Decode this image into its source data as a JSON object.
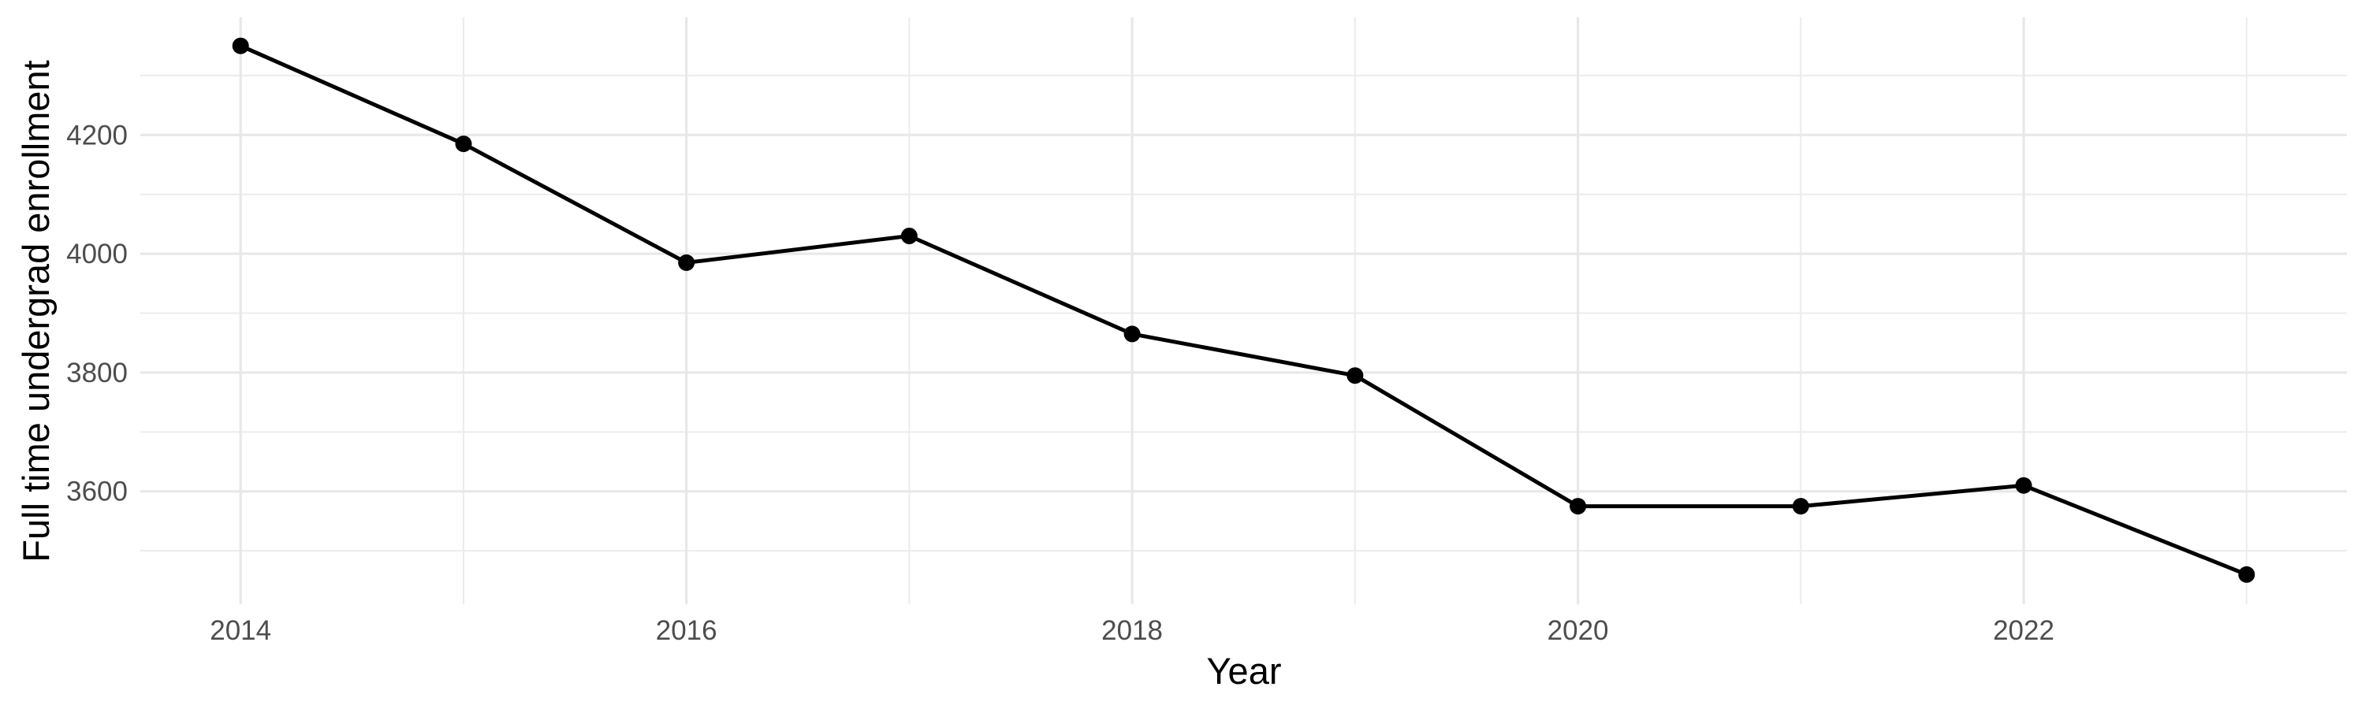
{
  "figure": {
    "background": "#FFFFFF"
  },
  "chart_data": {
    "type": "line",
    "title": "",
    "xlabel": "Year",
    "ylabel": "Full time undergrad enrollment",
    "x": [
      2014,
      2015,
      2016,
      2017,
      2018,
      2019,
      2020,
      2021,
      2022,
      2023
    ],
    "series": [
      {
        "name": "Full time undergrad enrollment",
        "values": [
          4350,
          4185,
          3985,
          4030,
          3865,
          3795,
          3575,
          3575,
          3610,
          3460
        ]
      }
    ],
    "x_tick_labels": [
      "2014",
      "2016",
      "2018",
      "2020",
      "2022"
    ],
    "x_tick_positions": [
      2014,
      2016,
      2018,
      2020,
      2022
    ],
    "y_tick_labels": [
      "3600",
      "3800",
      "4000",
      "4200"
    ],
    "y_tick_positions": [
      3600,
      3800,
      4000,
      4200
    ],
    "x_gridlines_major": [
      2014,
      2016,
      2018,
      2020,
      2022
    ],
    "x_gridlines_minor": [
      2015,
      2017,
      2019,
      2021,
      2023
    ],
    "y_gridlines_major": [
      3600,
      3800,
      4000,
      4200
    ],
    "y_gridlines_minor": [
      3500,
      3700,
      3900,
      4100,
      4300
    ],
    "xlim": [
      2013.55,
      2023.45
    ],
    "ylim": [
      3410,
      4398
    ],
    "grid": true,
    "legend": false,
    "marker": "point",
    "line_color": "#000000",
    "point_color": "#000000",
    "grid_color": "#E8E8E8",
    "grid_minor_color": "#ECECEC",
    "tick_label_color": "#4D4D4D",
    "axis_title_color": "#000000"
  }
}
